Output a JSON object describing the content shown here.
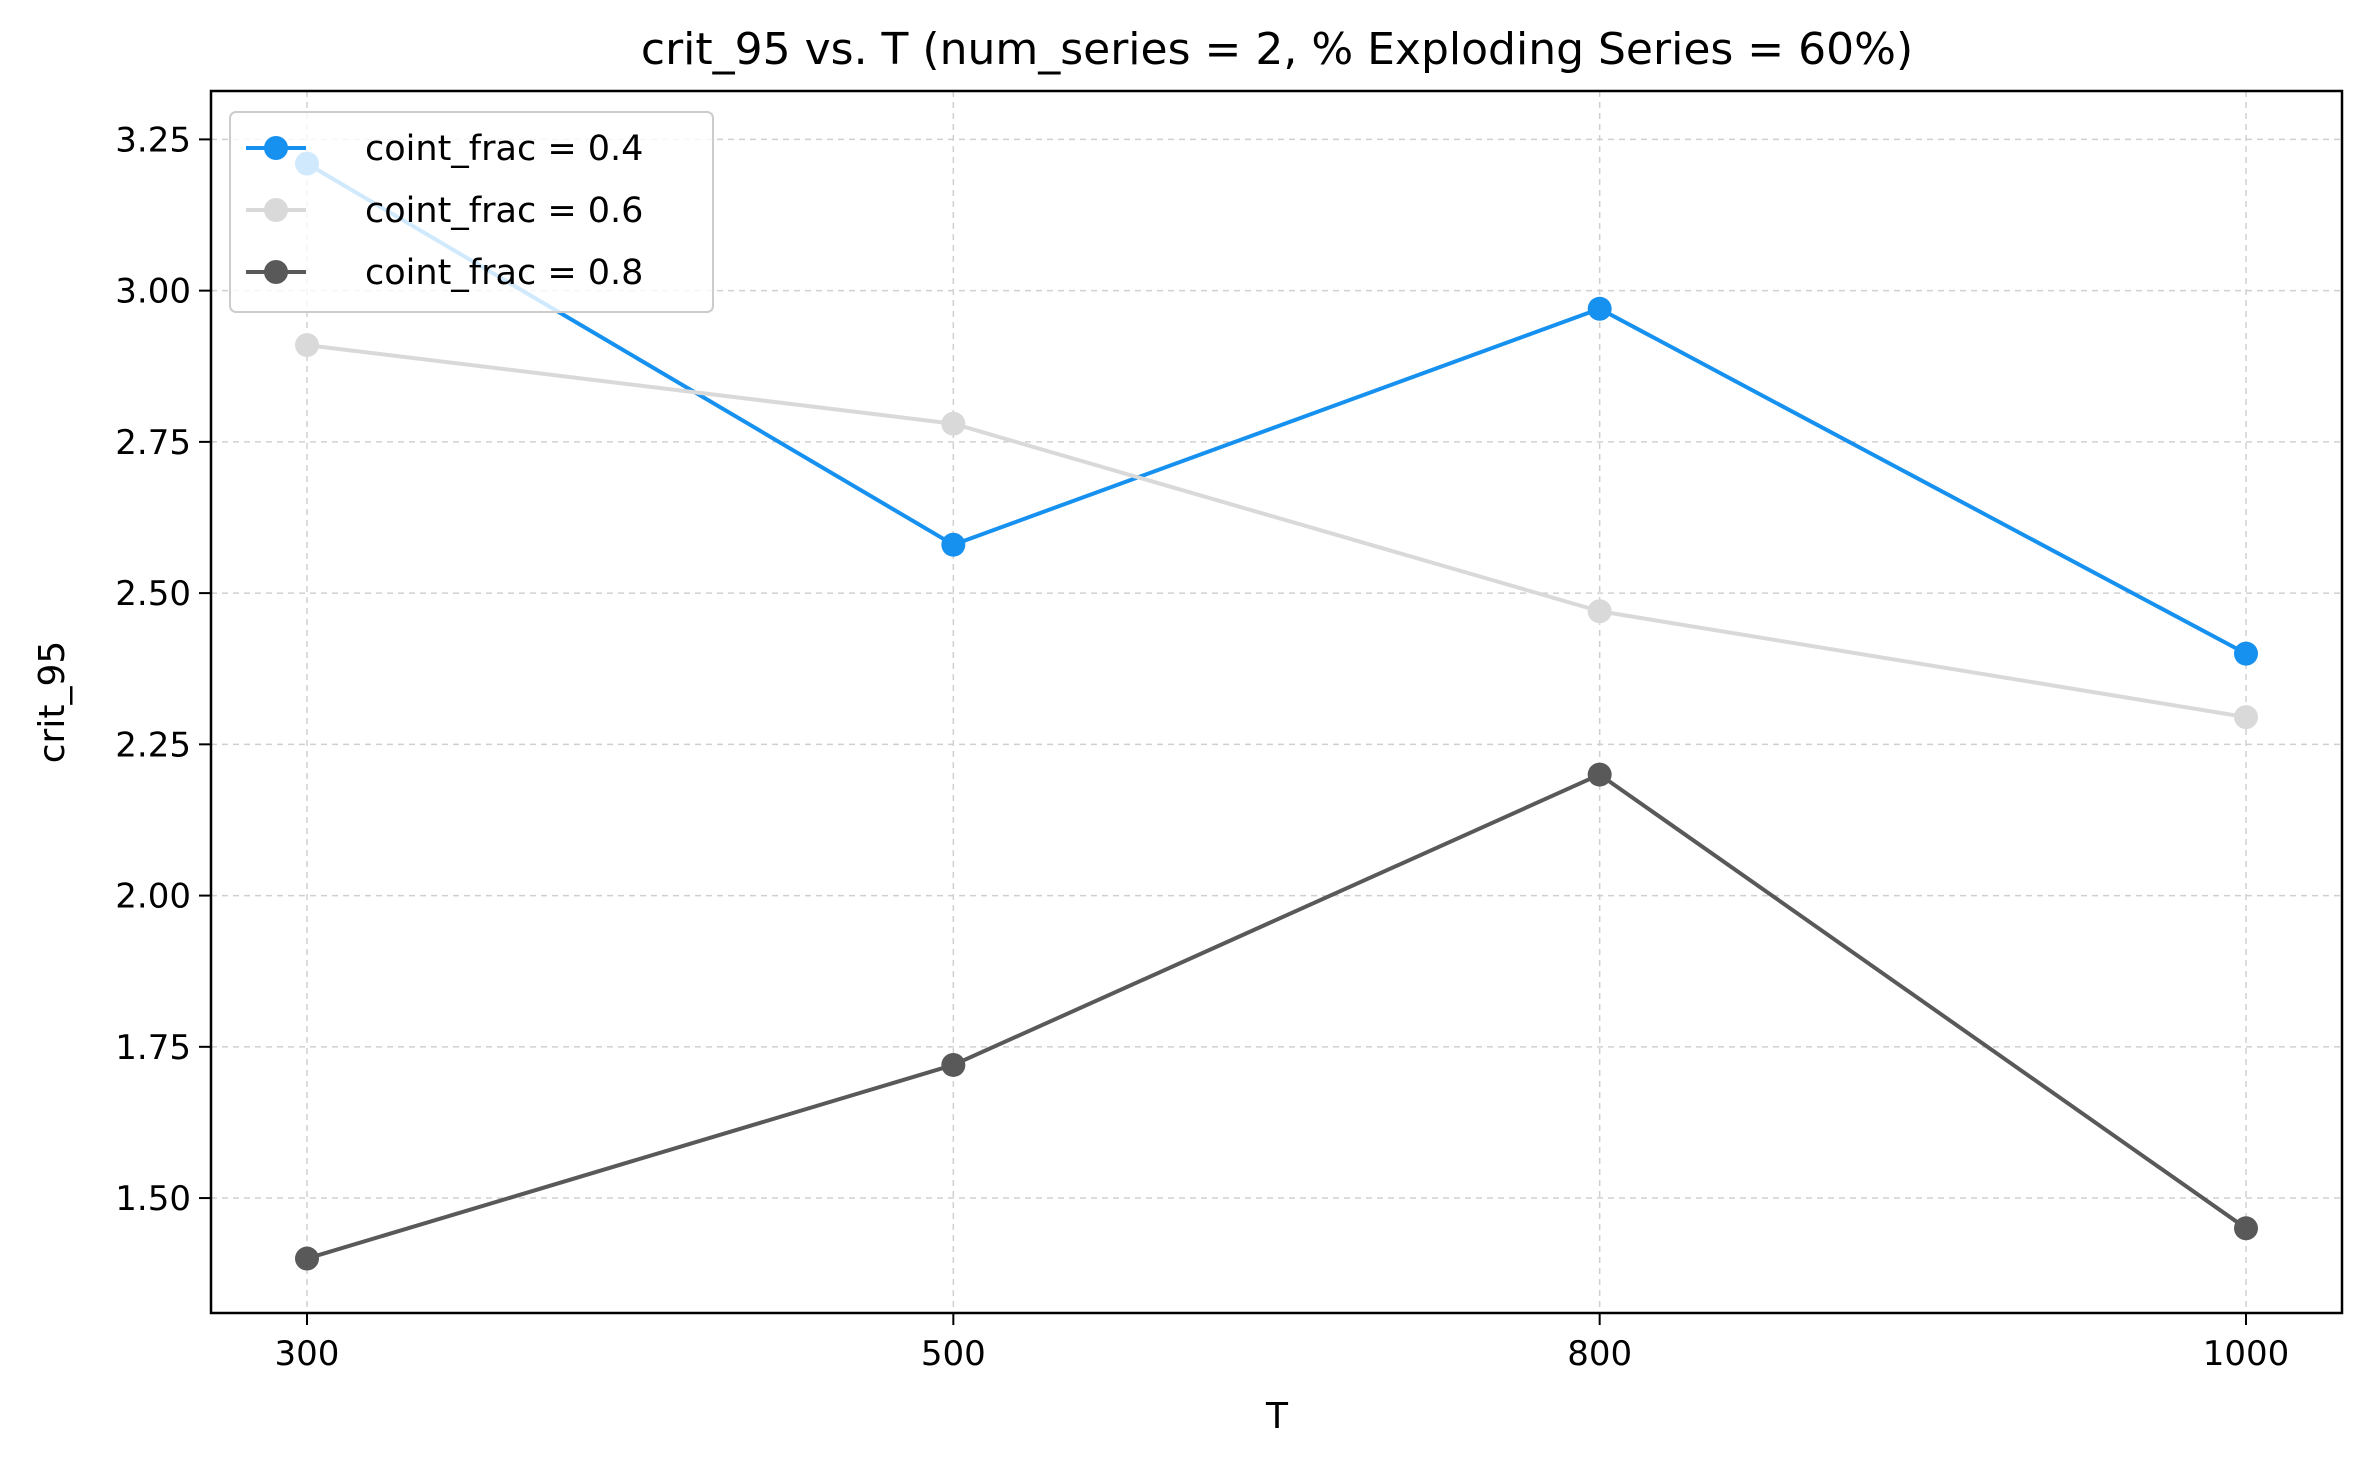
{
  "chart_data": {
    "type": "line",
    "title": "crit_95 vs. T  (num_series = 2, % Exploding Series = 60%)",
    "xlabel": "T",
    "ylabel": "crit_95",
    "categories": [
      "300",
      "500",
      "800",
      "1000"
    ],
    "yticks": [
      "1.50",
      "1.75",
      "2.00",
      "2.25",
      "2.50",
      "2.75",
      "3.00",
      "3.25"
    ],
    "ylim": [
      1.31,
      3.33
    ],
    "grid": true,
    "legend_position": "top-left",
    "series": [
      {
        "name": "coint_frac = 0.4",
        "color": "#1791F0",
        "values": [
          3.21,
          2.58,
          2.97,
          2.4
        ]
      },
      {
        "name": "coint_frac = 0.6",
        "color": "#D9D9D9",
        "values": [
          2.91,
          2.78,
          2.47,
          2.295
        ]
      },
      {
        "name": "coint_frac = 0.8",
        "color": "#595959",
        "values": [
          1.4,
          1.72,
          2.2,
          1.45
        ]
      }
    ]
  }
}
